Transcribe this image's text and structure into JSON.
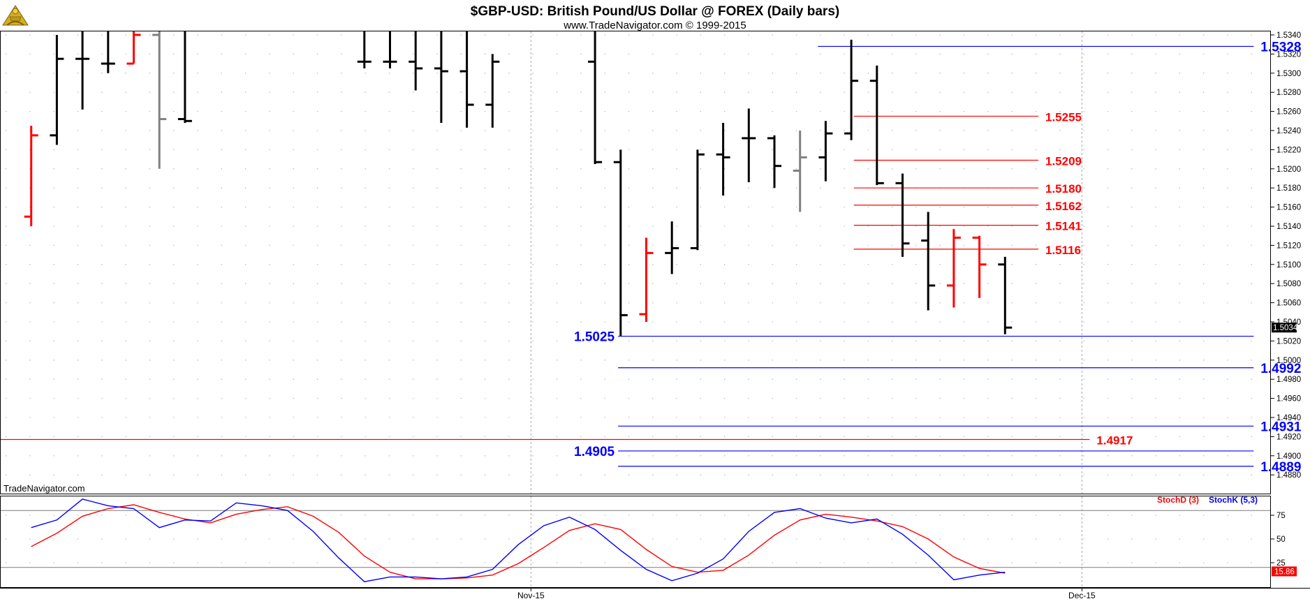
{
  "header": {
    "title": "$GBP-USD:  British Pound/US Dollar @ FOREX  (Daily bars)",
    "subtitle": "www.TradeNavigator.com © 1999-2015",
    "watermark": "TradeNavigator.com"
  },
  "colors": {
    "up": "#000000",
    "down": "#ff0000",
    "neutral": "#808080",
    "support": "#0000ff",
    "resistance": "#ff0000",
    "stochK": "#0000ff",
    "stochD": "#ff0000",
    "grid": "#b4b4b4"
  },
  "chart_data": [
    {
      "type": "ohlc",
      "title": "$GBP-USD:  British Pound/US Dollar @ FOREX  (Daily bars)",
      "ylim": [
        1.4855,
        1.5345
      ],
      "y_ticks": [
        "1.5340",
        "1.5320",
        "1.5300",
        "1.5280",
        "1.5260",
        "1.5240",
        "1.5220",
        "1.5200",
        "1.5180",
        "1.5160",
        "1.5140",
        "1.5120",
        "1.5100",
        "1.5080",
        "1.5060",
        "1.5040",
        "1.5020",
        "1.5000",
        "1.4980",
        "1.4960",
        "1.4940",
        "1.4920",
        "1.4900",
        "1.4880"
      ],
      "x_labels": [
        {
          "label": "Nov-15",
          "index": 20.5
        },
        {
          "label": "Dec-15",
          "index": 42
        }
      ],
      "bars": [
        {
          "i": 1,
          "h": 1.5245,
          "l": 1.514,
          "o": 1.515,
          "c": 1.5235,
          "color": "down"
        },
        {
          "i": 2,
          "h": 1.534,
          "l": 1.5225,
          "o": 1.5235,
          "c": 1.5315,
          "color": "up"
        },
        {
          "i": 3,
          "h": 1.5345,
          "l": 1.5262,
          "o": 1.5315,
          "c": 1.5315,
          "color": "up"
        },
        {
          "i": 4,
          "h": 1.5345,
          "l": 1.53,
          "o": 1.531,
          "c": 1.531,
          "color": "up"
        },
        {
          "i": 5,
          "h": 1.5345,
          "l": 1.531,
          "o": 1.531,
          "c": 1.534,
          "color": "down"
        },
        {
          "i": 6,
          "h": 1.5345,
          "l": 1.52,
          "o": 1.534,
          "c": 1.5252,
          "color": "neutral"
        },
        {
          "i": 7,
          "h": 1.5345,
          "l": 1.5248,
          "o": 1.5252,
          "c": 1.525,
          "color": "up"
        },
        {
          "i": 14,
          "h": 1.5345,
          "l": 1.5305,
          "o": 1.5312,
          "c": 1.5312,
          "color": "up"
        },
        {
          "i": 15,
          "h": 1.5345,
          "l": 1.5305,
          "o": 1.5312,
          "c": 1.5312,
          "color": "up"
        },
        {
          "i": 16,
          "h": 1.5345,
          "l": 1.5282,
          "o": 1.5312,
          "c": 1.5305,
          "color": "up"
        },
        {
          "i": 17,
          "h": 1.5345,
          "l": 1.5248,
          "o": 1.5305,
          "c": 1.5302,
          "color": "up"
        },
        {
          "i": 18,
          "h": 1.5345,
          "l": 1.5243,
          "o": 1.5302,
          "c": 1.5267,
          "color": "up"
        },
        {
          "i": 19,
          "h": 1.532,
          "l": 1.5243,
          "o": 1.5267,
          "c": 1.5312,
          "color": "up"
        },
        {
          "i": 23,
          "h": 1.5345,
          "l": 1.5205,
          "o": 1.5312,
          "c": 1.5207,
          "color": "up"
        },
        {
          "i": 24,
          "h": 1.522,
          "l": 1.5025,
          "o": 1.5207,
          "c": 1.5047,
          "color": "up"
        },
        {
          "i": 25,
          "h": 1.5128,
          "l": 1.504,
          "o": 1.5048,
          "c": 1.5112,
          "color": "down"
        },
        {
          "i": 26,
          "h": 1.5145,
          "l": 1.509,
          "o": 1.5112,
          "c": 1.5117,
          "color": "up"
        },
        {
          "i": 27,
          "h": 1.522,
          "l": 1.5115,
          "o": 1.5117,
          "c": 1.5215,
          "color": "up"
        },
        {
          "i": 28,
          "h": 1.5248,
          "l": 1.5172,
          "o": 1.5215,
          "c": 1.5212,
          "color": "up"
        },
        {
          "i": 29,
          "h": 1.5263,
          "l": 1.5186,
          "o": 1.5232,
          "c": 1.5232,
          "color": "up"
        },
        {
          "i": 30,
          "h": 1.5235,
          "l": 1.518,
          "o": 1.5232,
          "c": 1.5203,
          "color": "up"
        },
        {
          "i": 31,
          "h": 1.524,
          "l": 1.5155,
          "o": 1.5198,
          "c": 1.5212,
          "color": "neutral"
        },
        {
          "i": 32,
          "h": 1.525,
          "l": 1.5187,
          "o": 1.5212,
          "c": 1.5237,
          "color": "up"
        },
        {
          "i": 33,
          "h": 1.5335,
          "l": 1.523,
          "o": 1.5237,
          "c": 1.5292,
          "color": "up"
        },
        {
          "i": 34,
          "h": 1.5308,
          "l": 1.5183,
          "o": 1.5292,
          "c": 1.5185,
          "color": "up"
        },
        {
          "i": 35,
          "h": 1.5195,
          "l": 1.5108,
          "o": 1.5185,
          "c": 1.5122,
          "color": "up"
        },
        {
          "i": 36,
          "h": 1.5155,
          "l": 1.5052,
          "o": 1.5125,
          "c": 1.5078,
          "color": "up"
        },
        {
          "i": 37,
          "h": 1.5137,
          "l": 1.5055,
          "o": 1.5078,
          "c": 1.5128,
          "color": "down"
        },
        {
          "i": 38,
          "h": 1.513,
          "l": 1.5065,
          "o": 1.5128,
          "c": 1.51,
          "color": "down"
        },
        {
          "i": 39,
          "h": 1.5108,
          "l": 1.5027,
          "o": 1.51,
          "c": 1.5034,
          "color": "up"
        }
      ],
      "last_price": "1.5034",
      "levels": [
        {
          "value": 1.5328,
          "label": "1.5328",
          "color": "support",
          "from": 31.7,
          "to": 48.7,
          "label_side": "right"
        },
        {
          "value": 1.5255,
          "label": "1.5255",
          "color": "resistance",
          "from": 33.1,
          "to": 40.3,
          "label_side": "right"
        },
        {
          "value": 1.5209,
          "label": "1.5209",
          "color": "resistance",
          "from": 33.1,
          "to": 40.3,
          "label_side": "right"
        },
        {
          "value": 1.518,
          "label": "1.5180",
          "color": "resistance",
          "from": 33.1,
          "to": 40.3,
          "label_side": "right"
        },
        {
          "value": 1.5162,
          "label": "1.5162",
          "color": "resistance",
          "from": 33.1,
          "to": 40.3,
          "label_side": "right"
        },
        {
          "value": 1.5141,
          "label": "1.5141",
          "color": "resistance",
          "from": 33.1,
          "to": 40.3,
          "label_side": "right"
        },
        {
          "value": 1.5116,
          "label": "1.5116",
          "color": "resistance",
          "from": 33.1,
          "to": 40.3,
          "label_side": "right"
        },
        {
          "value": 1.5025,
          "label": "1.5025",
          "color": "support",
          "from": 23.9,
          "to": 48.7,
          "label_side": "left"
        },
        {
          "value": 1.4992,
          "label": "1.4992",
          "color": "support",
          "from": 23.9,
          "to": 48.7,
          "label_side": "right"
        },
        {
          "value": 1.4931,
          "label": "1.4931",
          "color": "support",
          "from": 23.9,
          "to": 48.7,
          "label_side": "right"
        },
        {
          "value": 1.4917,
          "label": "1.4917",
          "color": "resistance",
          "from": -0.5,
          "to": 42.3,
          "label_side": "right"
        },
        {
          "value": 1.4905,
          "label": "1.4905",
          "color": "support",
          "from": 23.9,
          "to": 48.7,
          "label_side": "left"
        },
        {
          "value": 1.4889,
          "label": "1.4889",
          "color": "support",
          "from": 23.9,
          "to": 48.7,
          "label_side": "right"
        }
      ]
    },
    {
      "type": "line",
      "ylim": [
        0,
        100
      ],
      "y_ticks": [
        "75",
        "50",
        "25"
      ],
      "ref_lines": [
        80,
        20
      ],
      "last_value": "15.86",
      "legend": [
        "StochD (3)",
        "StochK (5,3)"
      ],
      "series": [
        {
          "name": "StochK (5,3)",
          "color": "stochK",
          "x": [
            1,
            2,
            3,
            4,
            5,
            6,
            7,
            8,
            9,
            10,
            11,
            12,
            13,
            14,
            15,
            16,
            17,
            18,
            19,
            20,
            21,
            22,
            23,
            24,
            25,
            26,
            27,
            28,
            29,
            30,
            31,
            32,
            33,
            34,
            35,
            36,
            37,
            38,
            39
          ],
          "values": [
            62,
            70,
            92,
            85,
            82,
            62,
            70,
            69,
            88,
            85,
            80,
            58,
            30,
            5,
            10,
            10,
            8,
            10,
            18,
            44,
            64,
            73,
            60,
            38,
            18,
            6,
            14,
            29,
            58,
            78,
            82,
            72,
            67,
            71,
            55,
            33,
            7,
            12,
            15
          ]
        },
        {
          "name": "StochD (3)",
          "color": "stochD",
          "x": [
            1,
            2,
            3,
            4,
            5,
            6,
            7,
            8,
            9,
            10,
            11,
            12,
            13,
            14,
            15,
            16,
            17,
            18,
            19,
            20,
            21,
            22,
            23,
            24,
            25,
            26,
            27,
            28,
            29,
            30,
            31,
            32,
            33,
            34,
            35,
            36,
            37,
            38,
            39
          ],
          "values": [
            42,
            56,
            74,
            82,
            86,
            78,
            71,
            67,
            76,
            81,
            84,
            74,
            57,
            32,
            15,
            8,
            8,
            9,
            12,
            24,
            41,
            59,
            66,
            60,
            39,
            21,
            15,
            17,
            33,
            54,
            70,
            76,
            73,
            69,
            63,
            50,
            31,
            19,
            14
          ]
        }
      ]
    }
  ]
}
